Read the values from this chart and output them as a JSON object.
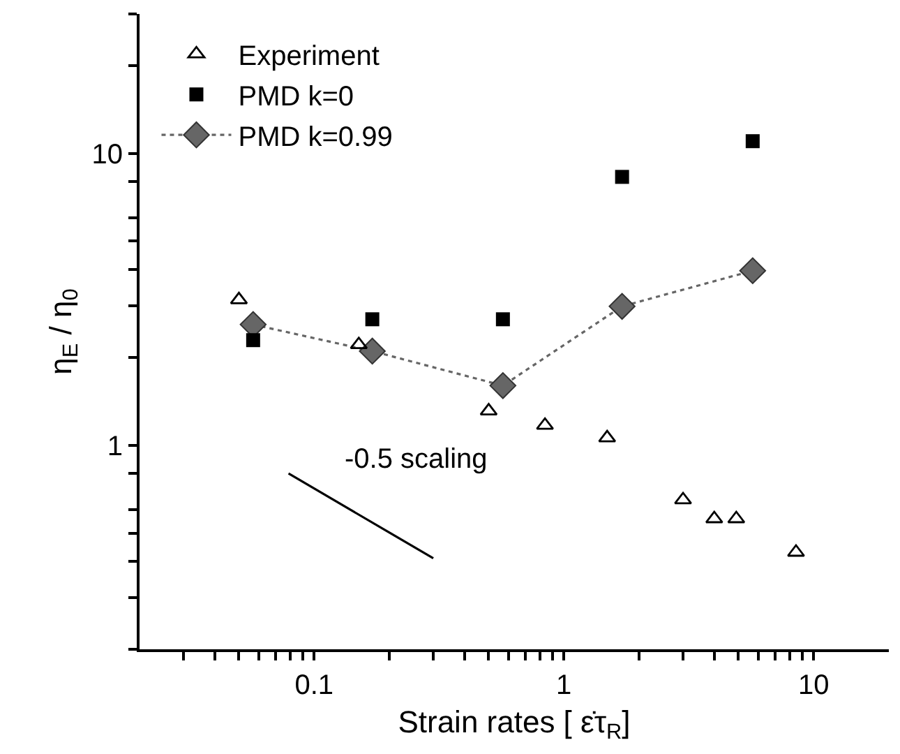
{
  "chart_data": {
    "type": "scatter",
    "xlabel": "Strain rates [ ε̇τ$_{R}$]",
    "ylabel": "η$_{E}$ / η$_{0}$",
    "log": "xy",
    "grid": false,
    "legend": "top left",
    "xlim": [
      0.02,
      20
    ],
    "xticks": [
      {
        "value": 0.03,
        "label": null
      },
      {
        "value": 0.04,
        "label": null
      },
      {
        "value": 0.05,
        "label": null
      },
      {
        "value": 0.06,
        "label": null
      },
      {
        "value": 0.07,
        "label": null
      },
      {
        "value": 0.08,
        "label": null
      },
      {
        "value": 0.09,
        "label": null
      },
      0.1,
      {
        "value": 0.2,
        "label": null
      },
      {
        "value": 0.3,
        "label": null
      },
      {
        "value": 0.4,
        "label": null
      },
      {
        "value": 0.5,
        "label": null
      },
      {
        "value": 0.6,
        "label": null
      },
      {
        "value": 0.7,
        "label": null
      },
      {
        "value": 0.8,
        "label": null
      },
      {
        "value": 0.9,
        "label": null
      },
      1,
      {
        "value": 2,
        "label": null
      },
      {
        "value": 3,
        "label": null
      },
      {
        "value": 4,
        "label": null
      },
      {
        "value": 5,
        "label": null
      },
      {
        "value": 6,
        "label": null
      },
      {
        "value": 7,
        "label": null
      },
      {
        "value": 8,
        "label": null
      },
      {
        "value": 9,
        "label": null
      },
      10
    ],
    "ylim": [
      0.2,
      30
    ],
    "yticks": [
      {
        "value": 0.2,
        "label": null
      },
      {
        "value": 0.3,
        "label": null
      },
      {
        "value": 0.4,
        "label": null
      },
      {
        "value": 0.5,
        "label": null
      },
      {
        "value": 0.6,
        "label": null
      },
      {
        "value": 0.8,
        "label": null
      },
      1,
      {
        "value": 2,
        "label": null
      },
      {
        "value": 3,
        "label": null
      },
      {
        "value": 4,
        "label": null
      },
      {
        "value": 5,
        "label": null
      },
      {
        "value": 6,
        "label": null
      },
      {
        "value": 8,
        "label": null
      },
      10,
      {
        "value": 20,
        "label": null
      },
      {
        "value": 30,
        "label": null
      }
    ],
    "annotations": [
      "-0.5 scaling"
    ],
    "series": [
      {
        "name": "Experiment",
        "marker": "triangle",
        "color": "#000000",
        "x": [
          0.05,
          0.151,
          0.5,
          0.84,
          1.49,
          3.0,
          4.0,
          4.9,
          8.5
        ],
        "values": [
          3.15,
          2.21,
          1.31,
          1.17,
          1.06,
          0.65,
          0.56,
          0.56,
          0.43
        ]
      },
      {
        "name": "PMD k=0",
        "marker": "square",
        "color": "#000000",
        "x": [
          0.057,
          0.171,
          0.57,
          1.71,
          5.7
        ],
        "values": [
          2.29,
          2.7,
          2.7,
          8.3,
          11.0
        ]
      },
      {
        "name": "PMD k=0.99",
        "type": "line",
        "marker": "diamond",
        "line_style": "dotted",
        "color": "#666666",
        "x": [
          0.057,
          0.171,
          0.57,
          1.71,
          5.7
        ],
        "values": [
          2.59,
          2.1,
          1.6,
          2.99,
          3.96
        ]
      },
      {
        "type": "line",
        "marker": "none",
        "line_style": "solid",
        "color": "#000000",
        "x": [
          0.079,
          0.3
        ],
        "values": [
          0.8,
          0.41
        ]
      }
    ]
  }
}
